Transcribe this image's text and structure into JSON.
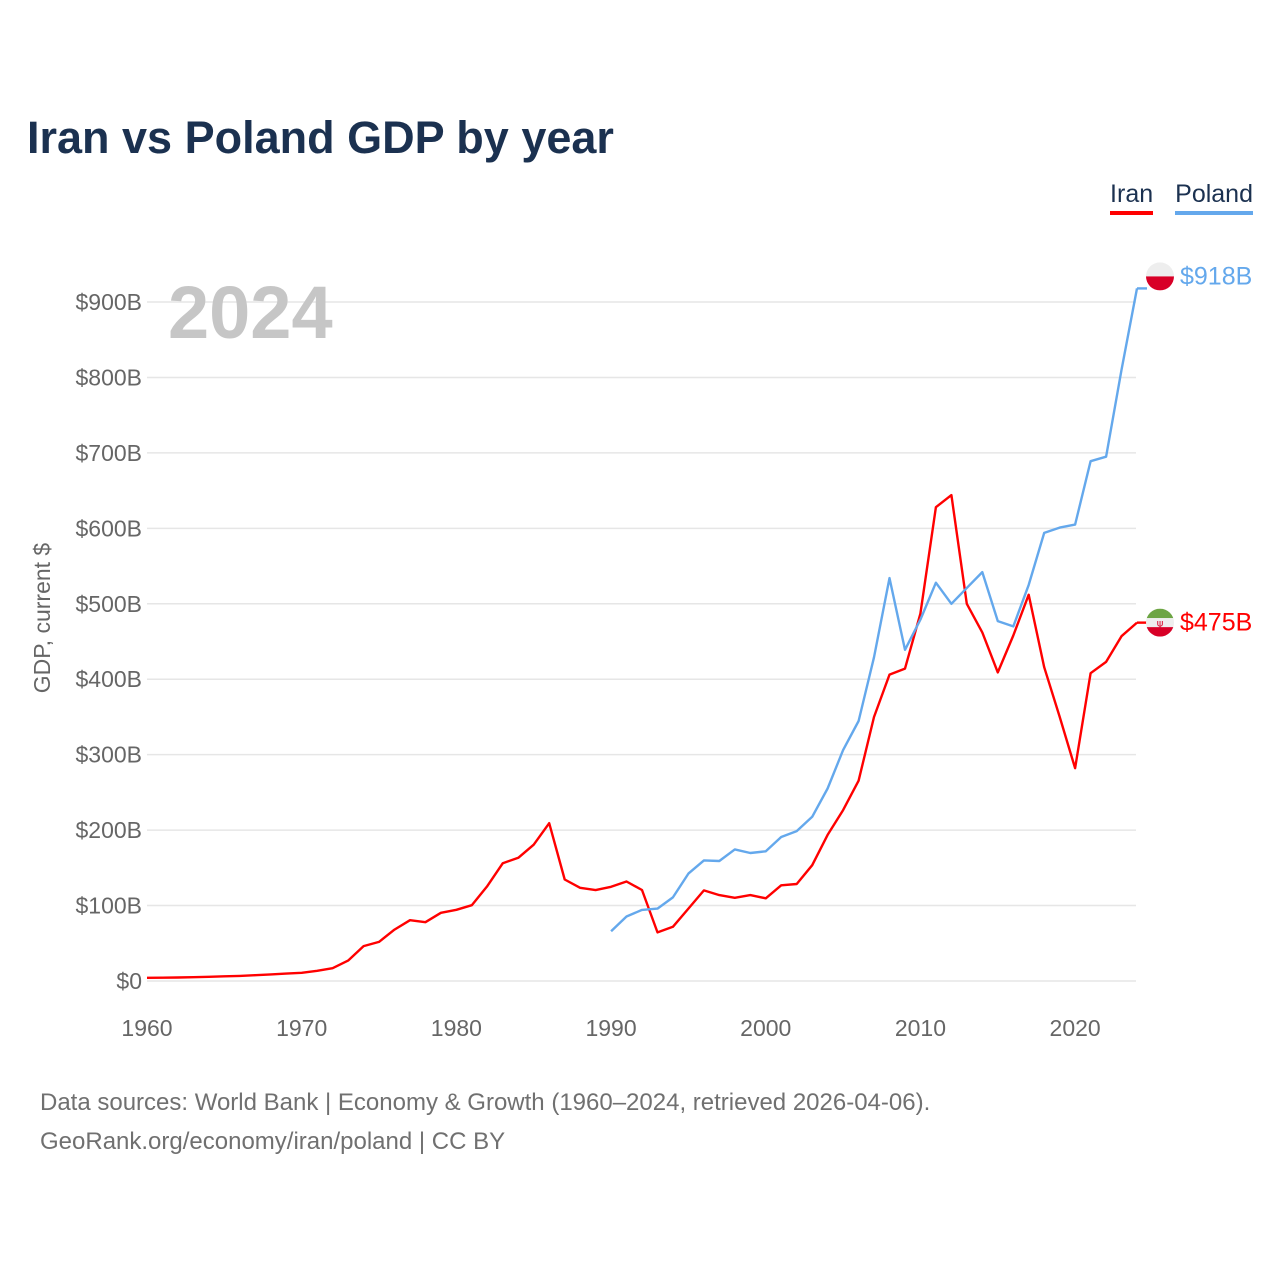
{
  "title": "Iran vs Poland GDP by year",
  "legend": [
    "Iran",
    "Poland"
  ],
  "year_overlay": "2024",
  "footer": {
    "line1": "Data sources: World Bank | Economy & Growth (1960–2024, retrieved 2026-04-06).",
    "line2": "GeoRank.org/economy/iran/poland | CC BY"
  },
  "chart_data": {
    "type": "line",
    "title": "Iran vs Poland GDP by year",
    "xlabel": "",
    "ylabel": "GDP, current $",
    "xlim": [
      1960,
      2024
    ],
    "ylim": [
      0,
      900
    ],
    "grid": true,
    "legend_position": "top-right",
    "x_ticks": [
      1960,
      1970,
      1980,
      1990,
      2000,
      2010,
      2020
    ],
    "x_tick_labels": [
      "1960",
      "1970",
      "1980",
      "1990",
      "2000",
      "2010",
      "2020"
    ],
    "y_ticks": [
      0,
      100,
      200,
      300,
      400,
      500,
      600,
      700,
      800,
      900
    ],
    "y_tick_labels": [
      "$0",
      "$100B",
      "$200B",
      "$300B",
      "$400B",
      "$500B",
      "$600B",
      "$700B",
      "$800B",
      "$900B"
    ],
    "series": [
      {
        "name": "Iran",
        "color": "#ff0000",
        "end_label": "$475B",
        "start_year": 1960,
        "values": [
          4.2,
          4.4,
          4.7,
          5.0,
          5.6,
          6.2,
          6.8,
          7.7,
          8.7,
          9.8,
          10.9,
          13.5,
          17.0,
          27.1,
          46.2,
          51.8,
          68.1,
          80.6,
          77.9,
          90.4,
          94.4,
          100.5,
          125.8,
          156.1,
          163.3,
          180.6,
          209.1,
          134.6,
          123.6,
          120.5,
          124.8,
          131.9,
          120.6,
          64.4,
          71.9,
          96.0,
          120.1,
          113.9,
          110.3,
          113.8,
          109.6,
          126.9,
          128.6,
          153.5,
          193.6,
          226.5,
          265.5,
          349.9,
          406.1,
          414.1,
          487,
          628,
          644,
          500,
          462,
          409,
          458,
          512,
          416,
          350,
          282,
          408,
          423,
          457,
          475
        ]
      },
      {
        "name": "Poland",
        "color": "#64a8ec",
        "end_label": "$918B",
        "start_year": 1990,
        "values": [
          65.9,
          85.5,
          94.3,
          96.0,
          110.8,
          142.3,
          159.9,
          159.0,
          174.4,
          169.7,
          171.9,
          190.9,
          198.7,
          217.6,
          255.1,
          306.1,
          344.6,
          429,
          534,
          439,
          479,
          528,
          500,
          521,
          542,
          477,
          470,
          525,
          594,
          601,
          605,
          689,
          695,
          810,
          918
        ]
      }
    ]
  }
}
